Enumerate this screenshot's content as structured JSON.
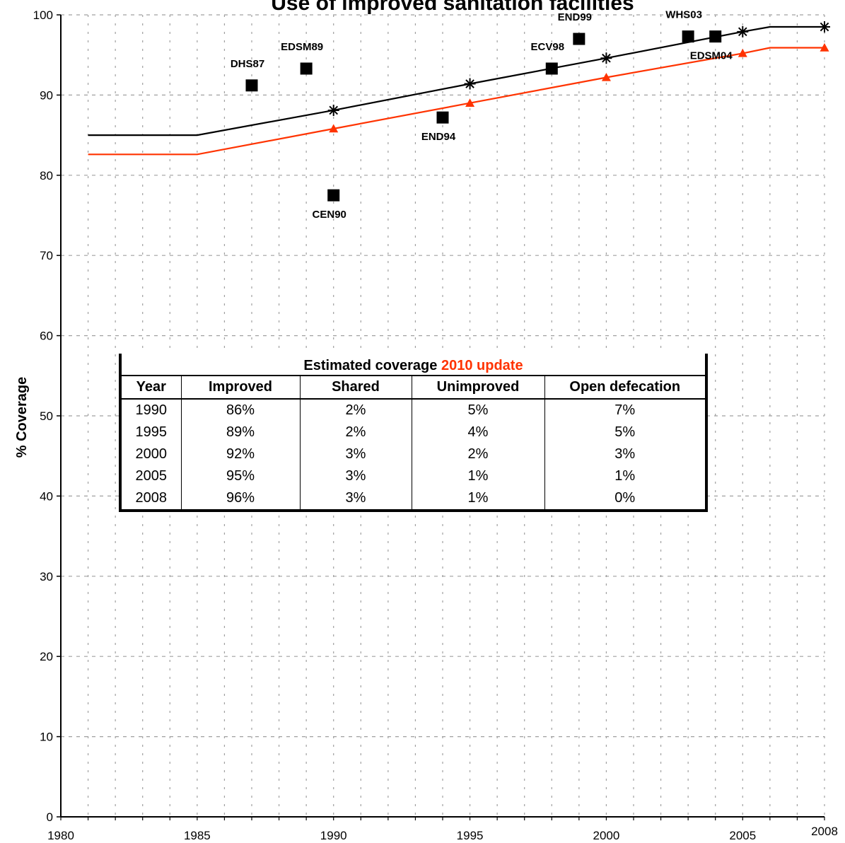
{
  "chart_data": {
    "type": "line",
    "title": "Use of improved sanitation facilities",
    "ylabel": "% Coverage",
    "xlabel": "",
    "xlim": [
      1980,
      2008
    ],
    "ylim": [
      0,
      100
    ],
    "x_ticks": [
      "1980",
      "1985",
      "1990",
      "1995",
      "2000",
      "2005",
      "2008"
    ],
    "y_ticks": [
      "0",
      "10",
      "20",
      "30",
      "40",
      "50",
      "60",
      "70",
      "80",
      "90",
      "100"
    ],
    "grid": true,
    "series": [
      {
        "color": "#000000",
        "marker": "asterisk",
        "line": [
          [
            1981,
            85.0
          ],
          [
            1985,
            85.0
          ],
          [
            1990,
            88.1
          ],
          [
            1995,
            91.4
          ],
          [
            2000,
            94.6
          ],
          [
            2005,
            97.9
          ],
          [
            2006,
            98.5
          ],
          [
            2008,
            98.5
          ]
        ],
        "markers": [
          [
            1990,
            88.1
          ],
          [
            1995,
            91.4
          ],
          [
            2000,
            94.6
          ],
          [
            2005,
            97.9
          ],
          [
            2008,
            98.5
          ]
        ]
      },
      {
        "color": "#ff3300",
        "marker": "triangle",
        "line": [
          [
            1981,
            82.6
          ],
          [
            1985,
            82.6
          ],
          [
            1990,
            85.8
          ],
          [
            1995,
            89.0
          ],
          [
            2000,
            92.2
          ],
          [
            2005,
            95.2
          ],
          [
            2006,
            95.9
          ],
          [
            2008,
            95.9
          ]
        ],
        "markers": [
          [
            1990,
            85.8
          ],
          [
            1995,
            89.0
          ],
          [
            2000,
            92.2
          ],
          [
            2005,
            95.2
          ],
          [
            2008,
            95.9
          ]
        ]
      }
    ],
    "survey_points": [
      {
        "label": "DHS87",
        "x": 1987,
        "y": 91.2,
        "label_pos": "above"
      },
      {
        "label": "EDSM89",
        "x": 1989,
        "y": 93.3,
        "label_pos": "above"
      },
      {
        "label": "CEN90",
        "x": 1990,
        "y": 77.5,
        "label_pos": "below"
      },
      {
        "label": "END94",
        "x": 1994,
        "y": 87.2,
        "label_pos": "below"
      },
      {
        "label": "ECV98",
        "x": 1998,
        "y": 93.3,
        "label_pos": "above"
      },
      {
        "label": "END99",
        "x": 1999,
        "y": 97.0,
        "label_pos": "above"
      },
      {
        "label": "WHS03",
        "x": 2003,
        "y": 97.3,
        "label_pos": "above"
      },
      {
        "label": "EDSM04",
        "x": 2004,
        "y": 97.3,
        "label_pos": "below"
      }
    ],
    "table": {
      "title": "Estimated coverage",
      "title_highlight": "2010 update",
      "highlight_color": "#ff3300",
      "columns": [
        "Year",
        "Improved",
        "Shared",
        "Unimproved",
        "Open defecation"
      ],
      "rows": [
        [
          "1990",
          "86%",
          "2%",
          "5%",
          "7%"
        ],
        [
          "1995",
          "89%",
          "2%",
          "4%",
          "5%"
        ],
        [
          "2000",
          "92%",
          "3%",
          "2%",
          "3%"
        ],
        [
          "2005",
          "95%",
          "3%",
          "1%",
          "1%"
        ],
        [
          "2008",
          "96%",
          "3%",
          "1%",
          "0%"
        ]
      ]
    }
  }
}
